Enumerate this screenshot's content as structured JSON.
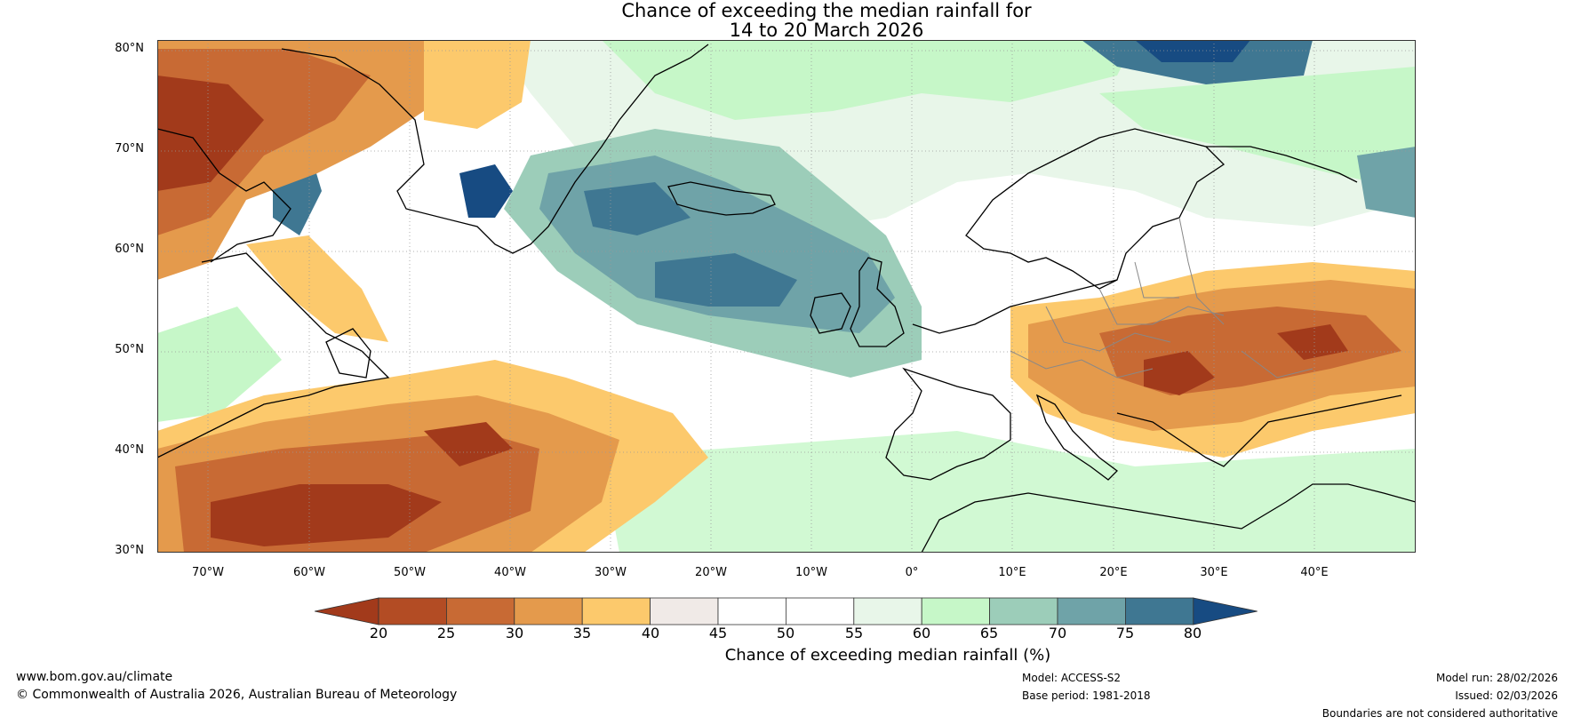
{
  "title": {
    "line1": "Chance of exceeding the median rainfall for",
    "line2": "14 to 20 March 2026"
  },
  "map": {
    "region": "North Atlantic and Europe",
    "lat_labels": [
      "80°N",
      "70°N",
      "60°N",
      "50°N",
      "40°N",
      "30°N"
    ],
    "lon_labels": [
      "70°W",
      "60°W",
      "50°W",
      "40°W",
      "30°W",
      "20°W",
      "10°W",
      "0°",
      "10°E",
      "20°E",
      "30°E",
      "40°E"
    ]
  },
  "colorbar": {
    "ticks": [
      "20",
      "25",
      "30",
      "35",
      "40",
      "45",
      "50",
      "55",
      "60",
      "65",
      "70",
      "75",
      "80"
    ],
    "colors": [
      "#a23a1b",
      "#b34c24",
      "#c86a34",
      "#e49a4c",
      "#fcc96c",
      "#f0eae7",
      "#ffffff",
      "#ffffff",
      "#e8f6e9",
      "#c6f7c8",
      "#9ccdb9",
      "#6fa3a8",
      "#3f7792",
      "#174b82"
    ],
    "label": "Chance of exceeding median rainfall (%)"
  },
  "footer": {
    "website": "www.bom.gov.au/climate",
    "copyright": "© Commonwealth of Australia 2026, Australian Bureau of Meteorology",
    "model": "Model: ACCESS-S2",
    "base_period": "Base period: 1981-2018",
    "model_run": "Model run: 28/02/2026",
    "issued": "Issued: 02/03/2026",
    "disclaimer": "Boundaries are not considered authoritative"
  }
}
